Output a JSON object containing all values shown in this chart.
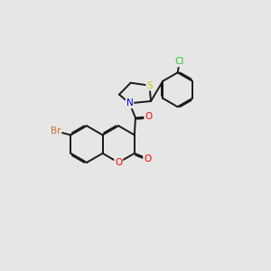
{
  "background_color": "#e6e6e6",
  "bond_color": "#1a1a1a",
  "bond_width": 1.4,
  "dbo": 0.055,
  "atom_colors": {
    "Br": "#c87020",
    "O": "#ff0000",
    "N": "#0000ee",
    "S": "#cccc00",
    "Cl": "#22cc22",
    "C": "#1a1a1a"
  },
  "atom_fontsizes": {
    "Br": 7.5,
    "O": 7.5,
    "N": 7.5,
    "S": 7.5,
    "Cl": 7.5
  },
  "xlim": [
    0,
    10
  ],
  "ylim": [
    0,
    10
  ]
}
